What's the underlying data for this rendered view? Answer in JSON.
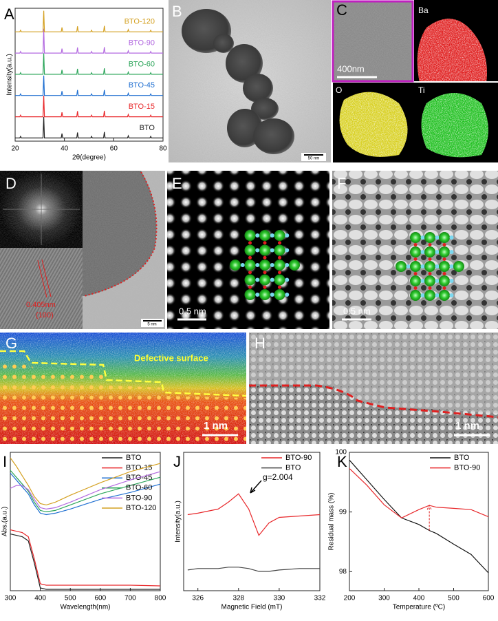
{
  "panel_labels": [
    "A",
    "B",
    "C",
    "D",
    "E",
    "F",
    "G",
    "H",
    "I",
    "J",
    "K"
  ],
  "images": {
    "B": {
      "scale_bar": "50 nm"
    },
    "C": {
      "scale_bar": "400nm",
      "maps": [
        "Ba",
        "O",
        "Ti"
      ]
    },
    "D": {
      "spacing": "0.405nm",
      "plane": "(100)",
      "scale_bar": "5 nm"
    },
    "E": {
      "scale_bar": "0.5 nm"
    },
    "F": {
      "scale_bar": "0.5 nm"
    },
    "G": {
      "annotation": "Defective surface",
      "scale_bar": "1 nm"
    },
    "H": {
      "scale_bar": "1 nm"
    }
  },
  "chart_data": [
    {
      "type": "line",
      "x_label": "2θ(degree)",
      "y_label": "Intensity(a.u.)",
      "offset_traces": true,
      "legend": "inline",
      "xlim": [
        20,
        80
      ],
      "xticks": [
        20,
        40,
        60,
        80
      ],
      "ylim": [
        0,
        1.2
      ],
      "x": [
        20,
        21.9,
        22.2,
        22.5,
        31.3,
        31.6,
        31.9,
        38.7,
        39.0,
        39.3,
        45.0,
        45.3,
        45.6,
        50.7,
        51.0,
        51.3,
        55.9,
        56.2,
        56.5,
        65.6,
        65.9,
        66.2,
        74.7,
        75.0,
        75.3,
        80
      ],
      "series": [
        {
          "name": "BTO",
          "color": "#222222",
          "values": [
            0.05,
            0.05,
            0.12,
            0.05,
            0.05,
            1.0,
            0.05,
            0.05,
            0.25,
            0.05,
            0.05,
            0.3,
            0.05,
            0.05,
            0.12,
            0.05,
            0.05,
            0.32,
            0.05,
            0.05,
            0.15,
            0.05,
            0.05,
            0.12,
            0.05,
            0.05
          ]
        },
        {
          "name": "BTO-15",
          "color": "#e8282b",
          "values": [
            0.05,
            0.05,
            0.12,
            0.05,
            0.05,
            1.0,
            0.05,
            0.05,
            0.25,
            0.05,
            0.05,
            0.3,
            0.05,
            0.05,
            0.12,
            0.05,
            0.05,
            0.32,
            0.05,
            0.05,
            0.15,
            0.05,
            0.05,
            0.12,
            0.05,
            0.05
          ]
        },
        {
          "name": "BTO-45",
          "color": "#1f6fd1",
          "values": [
            0.05,
            0.05,
            0.12,
            0.05,
            0.05,
            0.95,
            0.05,
            0.05,
            0.25,
            0.05,
            0.05,
            0.3,
            0.05,
            0.05,
            0.12,
            0.05,
            0.05,
            0.3,
            0.05,
            0.05,
            0.15,
            0.05,
            0.05,
            0.12,
            0.05,
            0.05
          ]
        },
        {
          "name": "BTO-60",
          "color": "#2ca55a",
          "values": [
            0.05,
            0.05,
            0.12,
            0.05,
            0.05,
            1.0,
            0.05,
            0.05,
            0.25,
            0.05,
            0.05,
            0.3,
            0.05,
            0.05,
            0.12,
            0.05,
            0.05,
            0.32,
            0.05,
            0.05,
            0.15,
            0.05,
            0.05,
            0.12,
            0.05,
            0.05
          ]
        },
        {
          "name": "BTO-90",
          "color": "#b36ae0",
          "values": [
            0.05,
            0.05,
            0.12,
            0.05,
            0.05,
            1.15,
            0.05,
            0.05,
            0.25,
            0.05,
            0.05,
            0.3,
            0.05,
            0.05,
            0.12,
            0.05,
            0.05,
            0.32,
            0.05,
            0.05,
            0.15,
            0.05,
            0.05,
            0.12,
            0.05,
            0.05
          ]
        },
        {
          "name": "BTO-120",
          "color": "#d4a020",
          "values": [
            0.05,
            0.05,
            0.12,
            0.05,
            0.05,
            1.0,
            0.05,
            0.05,
            0.25,
            0.05,
            0.05,
            0.3,
            0.05,
            0.05,
            0.12,
            0.05,
            0.05,
            0.32,
            0.05,
            0.05,
            0.15,
            0.05,
            0.05,
            0.12,
            0.05,
            0.05
          ]
        }
      ]
    },
    {
      "type": "line",
      "x_label": "Wavelength(nm)",
      "y_label": "Abs.(a.u.)",
      "legend": "upper right",
      "xlim": [
        300,
        800
      ],
      "xticks": [
        300,
        400,
        500,
        600,
        700,
        800
      ],
      "ylim": [
        0,
        1
      ],
      "x": [
        300,
        320,
        340,
        360,
        380,
        400,
        420,
        450,
        500,
        600,
        700,
        800
      ],
      "series": [
        {
          "name": "BTO",
          "color": "#222222",
          "values": [
            0.41,
            0.4,
            0.39,
            0.36,
            0.2,
            0.02,
            0.01,
            0.01,
            0.01,
            0.01,
            0.01,
            0.01
          ]
        },
        {
          "name": "BTO-15",
          "color": "#e8282b",
          "values": [
            0.44,
            0.43,
            0.42,
            0.39,
            0.23,
            0.05,
            0.04,
            0.04,
            0.04,
            0.04,
            0.04,
            0.035
          ]
        },
        {
          "name": "BTO-45",
          "color": "#1f6fd1",
          "values": [
            0.85,
            0.8,
            0.75,
            0.7,
            0.62,
            0.56,
            0.55,
            0.56,
            0.59,
            0.66,
            0.71,
            0.77
          ]
        },
        {
          "name": "BTO-60",
          "color": "#2ca55a",
          "values": [
            0.87,
            0.82,
            0.77,
            0.72,
            0.64,
            0.58,
            0.57,
            0.58,
            0.62,
            0.7,
            0.76,
            0.82
          ]
        },
        {
          "name": "BTO-90",
          "color": "#b36ae0",
          "values": [
            0.74,
            0.76,
            0.76,
            0.73,
            0.66,
            0.6,
            0.59,
            0.6,
            0.64,
            0.73,
            0.8,
            0.86
          ]
        },
        {
          "name": "BTO-120",
          "color": "#d4a020",
          "values": [
            0.96,
            0.9,
            0.83,
            0.76,
            0.68,
            0.63,
            0.62,
            0.64,
            0.69,
            0.78,
            0.86,
            0.92
          ]
        }
      ]
    },
    {
      "type": "line",
      "x_label": "Magnetic Field (mT)",
      "y_label": "Intensity(a.u.)",
      "legend": "upper right",
      "annotation": "g=2.004",
      "xlim": [
        325.3,
        332
      ],
      "xticks": [
        326,
        328,
        330,
        332
      ],
      "ylim": [
        0,
        1
      ],
      "x": [
        325.5,
        326,
        327,
        327.5,
        328,
        328.5,
        329,
        329.5,
        330,
        331,
        332
      ],
      "series": [
        {
          "name": "BTO-90",
          "color": "#e8282b",
          "values": [
            0.55,
            0.56,
            0.59,
            0.64,
            0.7,
            0.59,
            0.4,
            0.49,
            0.53,
            0.54,
            0.55
          ]
        },
        {
          "name": "BTO",
          "color": "#444444",
          "values": [
            0.15,
            0.16,
            0.16,
            0.17,
            0.17,
            0.16,
            0.14,
            0.14,
            0.15,
            0.16,
            0.16
          ]
        }
      ]
    },
    {
      "type": "line",
      "x_label": "Temperature (ºC)",
      "y_label": "Residual mass (%)",
      "legend": "upper right",
      "xlim": [
        200,
        600
      ],
      "xticks": [
        200,
        300,
        400,
        500,
        600
      ],
      "ylim": [
        97.68,
        100
      ],
      "yticks": [
        98,
        99,
        100
      ],
      "x": [
        200,
        250,
        300,
        350,
        400,
        430,
        450,
        500,
        550,
        600
      ],
      "series": [
        {
          "name": "BTO",
          "color": "#111111",
          "values": [
            99.87,
            99.54,
            99.21,
            98.9,
            98.79,
            98.69,
            98.64,
            98.46,
            98.29,
            97.98
          ]
        },
        {
          "name": "BTO-90",
          "color": "#e8282b",
          "values": [
            99.73,
            99.45,
            99.12,
            98.9,
            99.04,
            99.11,
            99.08,
            99.06,
            99.04,
            98.92
          ]
        }
      ]
    }
  ]
}
